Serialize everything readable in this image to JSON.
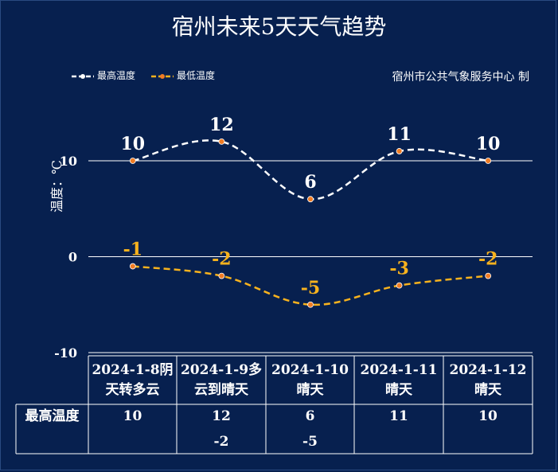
{
  "title": "宿州未来5天天气趋势",
  "source": "宿州市公共气象服务中心 制",
  "legend": {
    "high": "最高温度",
    "low": "最低温度"
  },
  "colors": {
    "background": "#07204f",
    "high_line": "#ffffff",
    "low_line": "#f7b21e",
    "marker": "#f07c24"
  },
  "chart_data": {
    "type": "line",
    "categories": [
      "2024-1-8阴天转多云",
      "2024-1-9多云到晴天",
      "2024-1-10晴天",
      "2024-1-11晴天",
      "2024-1-12晴天"
    ],
    "series": [
      {
        "name": "最高温度",
        "values": [
          10,
          12,
          6,
          11,
          10
        ]
      },
      {
        "name": "最低温度",
        "values": [
          -1,
          -2,
          -5,
          -3,
          -2
        ]
      }
    ],
    "ylabel": "温度：℃",
    "ylim": [
      -10,
      10
    ],
    "yticks": [
      "10",
      "0",
      "-10"
    ],
    "grid": true,
    "legend_position": "top-left"
  },
  "table": {
    "dates": [
      {
        "line1": "2024-1-8阴",
        "line2": "天转多云"
      },
      {
        "line1": "2024-1-9多",
        "line2": "云到晴天"
      },
      {
        "line1": "2024-1-10",
        "line2": "晴天"
      },
      {
        "line1": "2024-1-11",
        "line2": "晴天"
      },
      {
        "line1": "2024-1-12",
        "line2": "晴天"
      }
    ],
    "row_header": "最高温度",
    "high_values": [
      "10",
      "12",
      "6",
      "11",
      "10"
    ],
    "low_values": [
      "",
      "-2",
      "-5",
      "",
      ""
    ]
  }
}
